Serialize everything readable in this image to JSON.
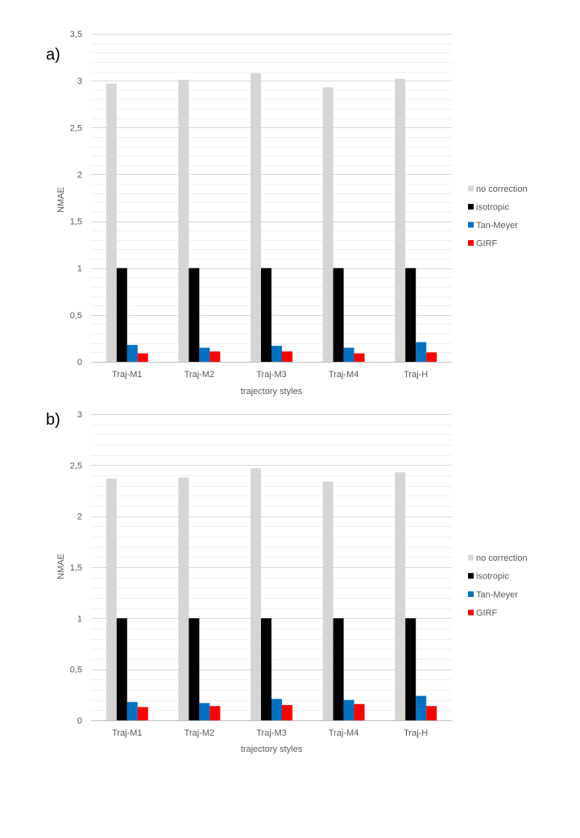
{
  "chart_data": [
    {
      "type": "bar",
      "panel_label": "a)",
      "xlabel": "trajectory  styles",
      "ylabel": "NMAE",
      "ylim": [
        0,
        3.5
      ],
      "yticks": [
        "0",
        "0,5",
        "1",
        "1,5",
        "2",
        "2,5",
        "3",
        "3,5"
      ],
      "categories": [
        "Traj-M1",
        "Traj-M2",
        "Traj-M3",
        "Traj-M4",
        "Traj-H"
      ],
      "series": [
        {
          "name": "no correction",
          "color": "#d9d9d9",
          "values": [
            2.97,
            3.01,
            3.08,
            2.93,
            3.02
          ]
        },
        {
          "name": "isotropic",
          "color": "#000000",
          "values": [
            1,
            1,
            1,
            1,
            1
          ]
        },
        {
          "name": "Tan-Meyer",
          "color": "#0070c0",
          "values": [
            0.18,
            0.15,
            0.17,
            0.15,
            0.21
          ]
        },
        {
          "name": "GIRF",
          "color": "#ff0000",
          "values": [
            0.09,
            0.11,
            0.11,
            0.09,
            0.1
          ]
        }
      ],
      "legend": [
        "no correction",
        "isotropic",
        "Tan-Meyer",
        "GIRF"
      ],
      "legend_position": "right",
      "grid": true
    },
    {
      "type": "bar",
      "panel_label": "b)",
      "xlabel": "trajectory  styles",
      "ylabel": "NMAE",
      "ylim": [
        0,
        3
      ],
      "yticks": [
        "0",
        "0,5",
        "1",
        "1,5",
        "2",
        "2,5",
        "3"
      ],
      "categories": [
        "Traj-M1",
        "Traj-M2",
        "Traj-M3",
        "Traj-M4",
        "Traj-H"
      ],
      "series": [
        {
          "name": "no correction",
          "color": "#d9d9d9",
          "values": [
            2.37,
            2.38,
            2.47,
            2.34,
            2.43
          ]
        },
        {
          "name": "isotropic",
          "color": "#000000",
          "values": [
            1,
            1,
            1,
            1,
            1
          ]
        },
        {
          "name": "Tan-Meyer",
          "color": "#0070c0",
          "values": [
            0.18,
            0.17,
            0.21,
            0.2,
            0.24
          ]
        },
        {
          "name": "GIRF",
          "color": "#ff0000",
          "values": [
            0.13,
            0.14,
            0.15,
            0.16,
            0.14
          ]
        }
      ],
      "legend": [
        "no correction",
        "isotropic",
        "Tan-Meyer",
        "GIRF"
      ],
      "legend_position": "right",
      "grid": true
    }
  ]
}
